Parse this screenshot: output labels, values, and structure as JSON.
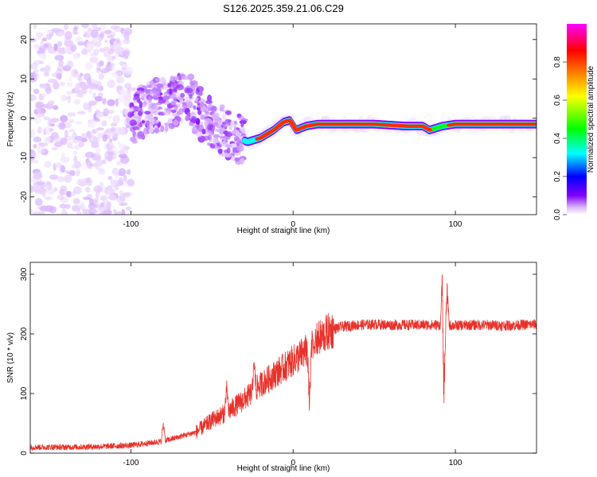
{
  "figure": {
    "title": "S126.2025.359.21.06.C29"
  },
  "chart_data": [
    {
      "type": "heatmap",
      "xlabel": "Height of straight line (km)",
      "ylabel": "Frequency (Hz)",
      "xlim": [
        -162,
        150
      ],
      "ylim": [
        -24.5,
        24
      ],
      "x_ticks": [
        -100,
        0,
        100
      ],
      "y_ticks": [
        -20,
        -10,
        0,
        10,
        20
      ],
      "colorbar": {
        "label": "Normalized spectral amplitude",
        "range": [
          0,
          1
        ],
        "ticks": [
          0.0,
          0.2,
          0.4,
          0.6,
          0.8
        ],
        "colormap": [
          "#ffffff",
          "#d9b3ff",
          "#8000ff",
          "#0000ff",
          "#00ffff",
          "#00ff00",
          "#ffff00",
          "#ff8000",
          "#ff0000",
          "#ff00ff"
        ]
      },
      "ridge": {
        "description_points_x": [
          -95,
          -85,
          -75,
          -65,
          -55,
          -45,
          -35,
          -28,
          -20,
          -12,
          -6,
          -2,
          2,
          8,
          15,
          30,
          50,
          70,
          80,
          84,
          88,
          92,
          100,
          110,
          120,
          130,
          140,
          148
        ],
        "description_points_y": [
          1,
          3,
          4,
          5,
          0,
          -3,
          -5,
          -6,
          -5,
          -3,
          -1,
          -0.5,
          -3,
          -2,
          -1.5,
          -1.5,
          -1.5,
          -2,
          -2,
          -3,
          -2.5,
          -2,
          -1.5,
          -1.5,
          -1.5,
          -1.5,
          -1.5,
          -1.5
        ],
        "noise_region_x": [
          -162,
          -100
        ],
        "transition_region_x": [
          -100,
          -30
        ]
      }
    },
    {
      "type": "line",
      "xlabel": "Height of straight line (km)",
      "ylabel": "SNR (10 * v/v)",
      "xlim": [
        -162,
        150
      ],
      "ylim": [
        0,
        320
      ],
      "x_ticks": [
        -100,
        0,
        100
      ],
      "y_ticks": [
        0,
        100,
        200,
        300
      ],
      "color": "#e8312a",
      "baseline_x": [
        -162,
        -140,
        -120,
        -100,
        -80,
        -60,
        -50,
        -40,
        -30,
        -20,
        -10,
        0,
        10,
        15,
        20,
        25,
        30,
        40,
        50,
        60,
        70,
        80,
        90,
        100,
        110,
        120,
        130,
        140,
        150
      ],
      "baseline_y": [
        10,
        10,
        11,
        13,
        20,
        35,
        55,
        70,
        90,
        115,
        135,
        155,
        175,
        190,
        200,
        208,
        212,
        215,
        216,
        215,
        215,
        215,
        215,
        214,
        215,
        215,
        214,
        215,
        216
      ],
      "spikes": [
        {
          "x": -80,
          "y": 65
        },
        {
          "x": -41,
          "y": 128
        },
        {
          "x": -24,
          "y": 168
        },
        {
          "x": 10,
          "y": 60
        },
        {
          "x": 13,
          "y": 178
        },
        {
          "x": 92,
          "y": 318
        },
        {
          "x": 93,
          "y": 65
        },
        {
          "x": 95,
          "y": 290
        }
      ]
    }
  ]
}
